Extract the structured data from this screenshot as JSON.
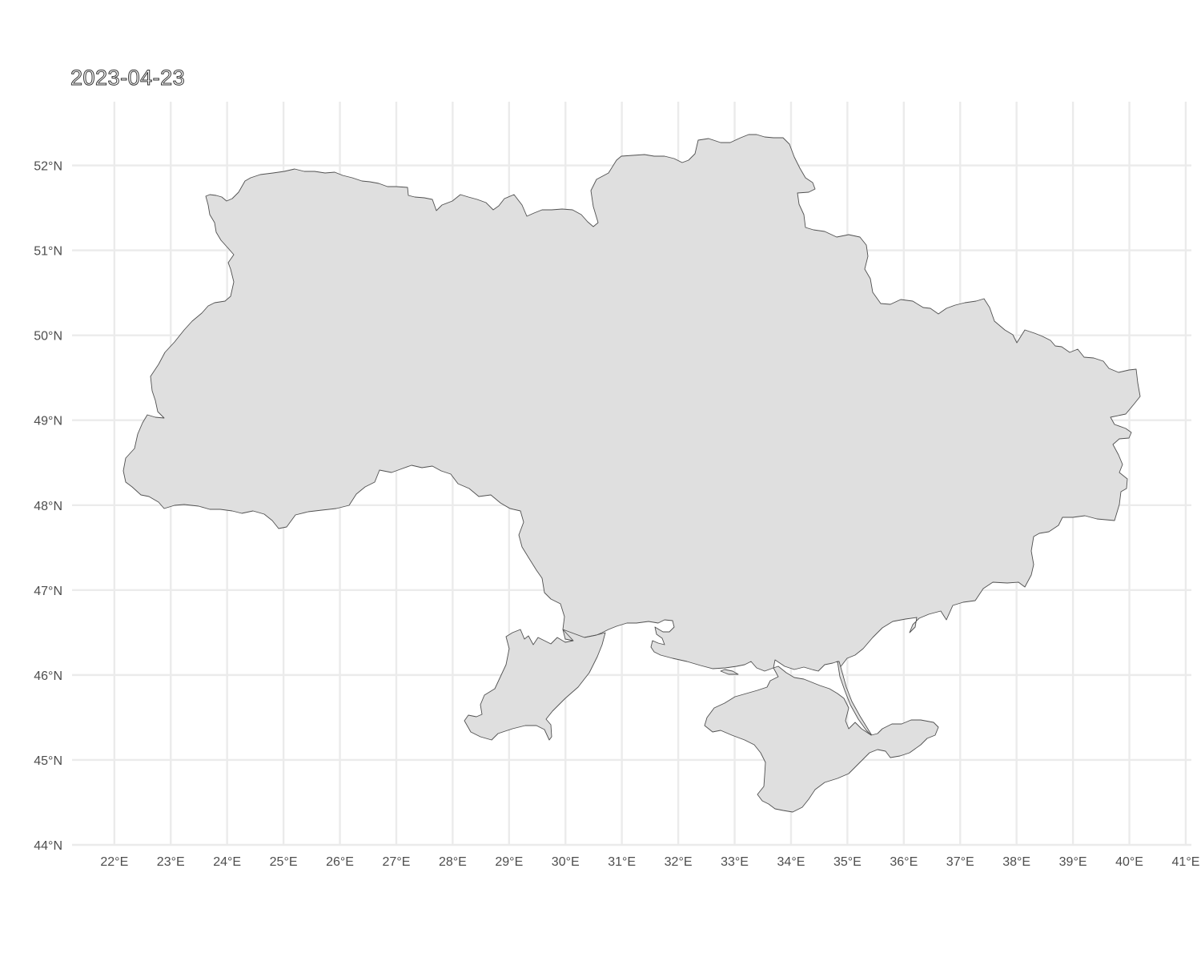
{
  "title": "2023-04-23",
  "map": {
    "region": "Ukraine",
    "fill_color": "#dfdfdf",
    "outline_color": "#505050",
    "grid_color": "#ebebeb",
    "background": "#ffffff",
    "lon_range": [
      21.25,
      41.1
    ],
    "lat_range": [
      44.0,
      52.75
    ],
    "lon_ticks": [
      22,
      23,
      24,
      25,
      26,
      27,
      28,
      29,
      30,
      31,
      32,
      33,
      34,
      35,
      36,
      37,
      38,
      39,
      40,
      41
    ],
    "lat_ticks": [
      44,
      45,
      46,
      47,
      48,
      49,
      50,
      51,
      52
    ],
    "lon_tick_labels": [
      "22°E",
      "23°E",
      "24°E",
      "25°E",
      "26°E",
      "27°E",
      "28°E",
      "29°E",
      "30°E",
      "31°E",
      "32°E",
      "33°E",
      "34°E",
      "35°E",
      "36°E",
      "37°E",
      "38°E",
      "39°E",
      "40°E",
      "41°E"
    ],
    "lat_tick_labels": [
      "44°N",
      "45°N",
      "46°N",
      "47°N",
      "48°N",
      "49°N",
      "50°N",
      "51°N",
      "52°N"
    ]
  }
}
